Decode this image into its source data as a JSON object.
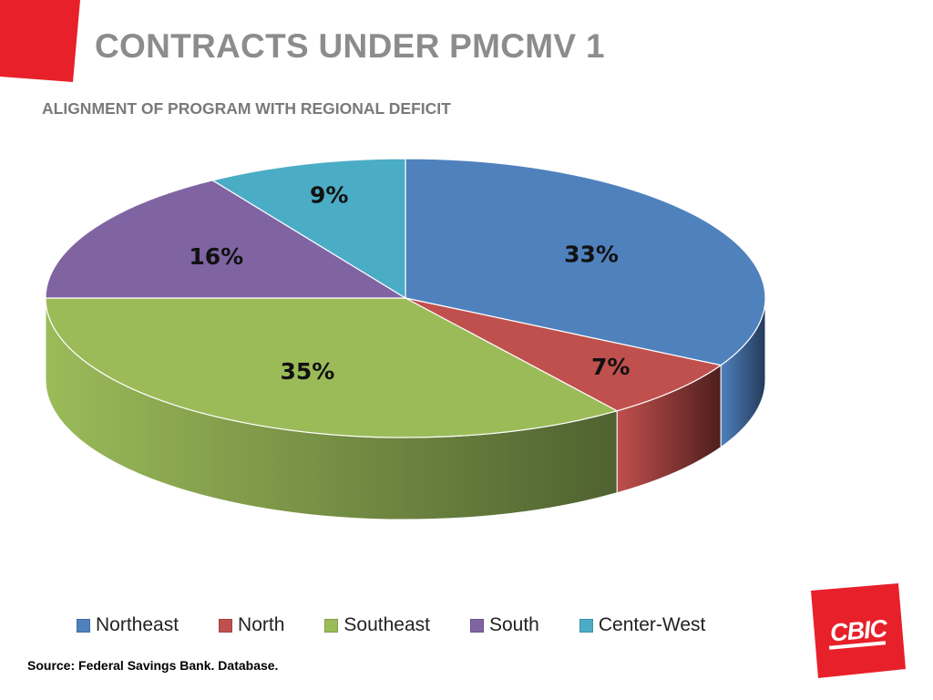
{
  "page": {
    "title": "CONTRACTS UNDER PMCMV 1",
    "subtitle": "ALIGNMENT OF PROGRAM WITH REGIONAL DEFICIT",
    "source": "Source: Federal Savings Bank. Database.",
    "logo_text": "CBIC"
  },
  "colors": {
    "accent_red": "#e8202a",
    "title_gray": "#8c8c8c",
    "subtitle_gray": "#7a7a7a"
  },
  "chart_data": {
    "type": "pie",
    "style": "3d",
    "legend_placement": "bottom",
    "slices": [
      {
        "label": "Northeast",
        "value": 33,
        "data_label": "33%",
        "color": "#4f81bd",
        "side_color": "#243a5a"
      },
      {
        "label": "North",
        "value": 7,
        "data_label": "7%",
        "color": "#c0504d",
        "side_color": "#4e1e1d"
      },
      {
        "label": "Southeast",
        "value": 35,
        "data_label": "35%",
        "color": "#9bbb59",
        "side_color": "#4f6230"
      },
      {
        "label": "South",
        "value": 16,
        "data_label": "16%",
        "color": "#8064a2",
        "side_color": "#3d2f50"
      },
      {
        "label": "Center-West",
        "value": 9,
        "data_label": "9%",
        "color": "#4bacc6",
        "side_color": "#22525e"
      }
    ]
  }
}
